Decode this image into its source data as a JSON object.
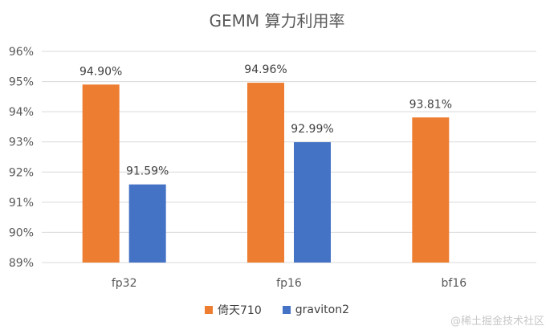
{
  "chart_data": {
    "type": "bar",
    "title": "GEMM 算力利用率",
    "categories": [
      "fp32",
      "fp16",
      "bf16"
    ],
    "series": [
      {
        "name": "倚天710",
        "color": "#ED7D31",
        "values": [
          94.9,
          94.96,
          93.81
        ],
        "labels": [
          "94.90%",
          "94.96%",
          "93.81%"
        ]
      },
      {
        "name": "graviton2",
        "color": "#4472C4",
        "values": [
          91.59,
          92.99,
          null
        ],
        "labels": [
          "91.59%",
          "92.99%",
          ""
        ]
      }
    ],
    "ylim": [
      89,
      96
    ],
    "yticks": [
      "89%",
      "90%",
      "91%",
      "92%",
      "93%",
      "94%",
      "95%",
      "96%"
    ],
    "grid": true,
    "legend_position": "bottom",
    "xlabel": "",
    "ylabel": ""
  },
  "watermark": "@稀土掘金技术社区"
}
